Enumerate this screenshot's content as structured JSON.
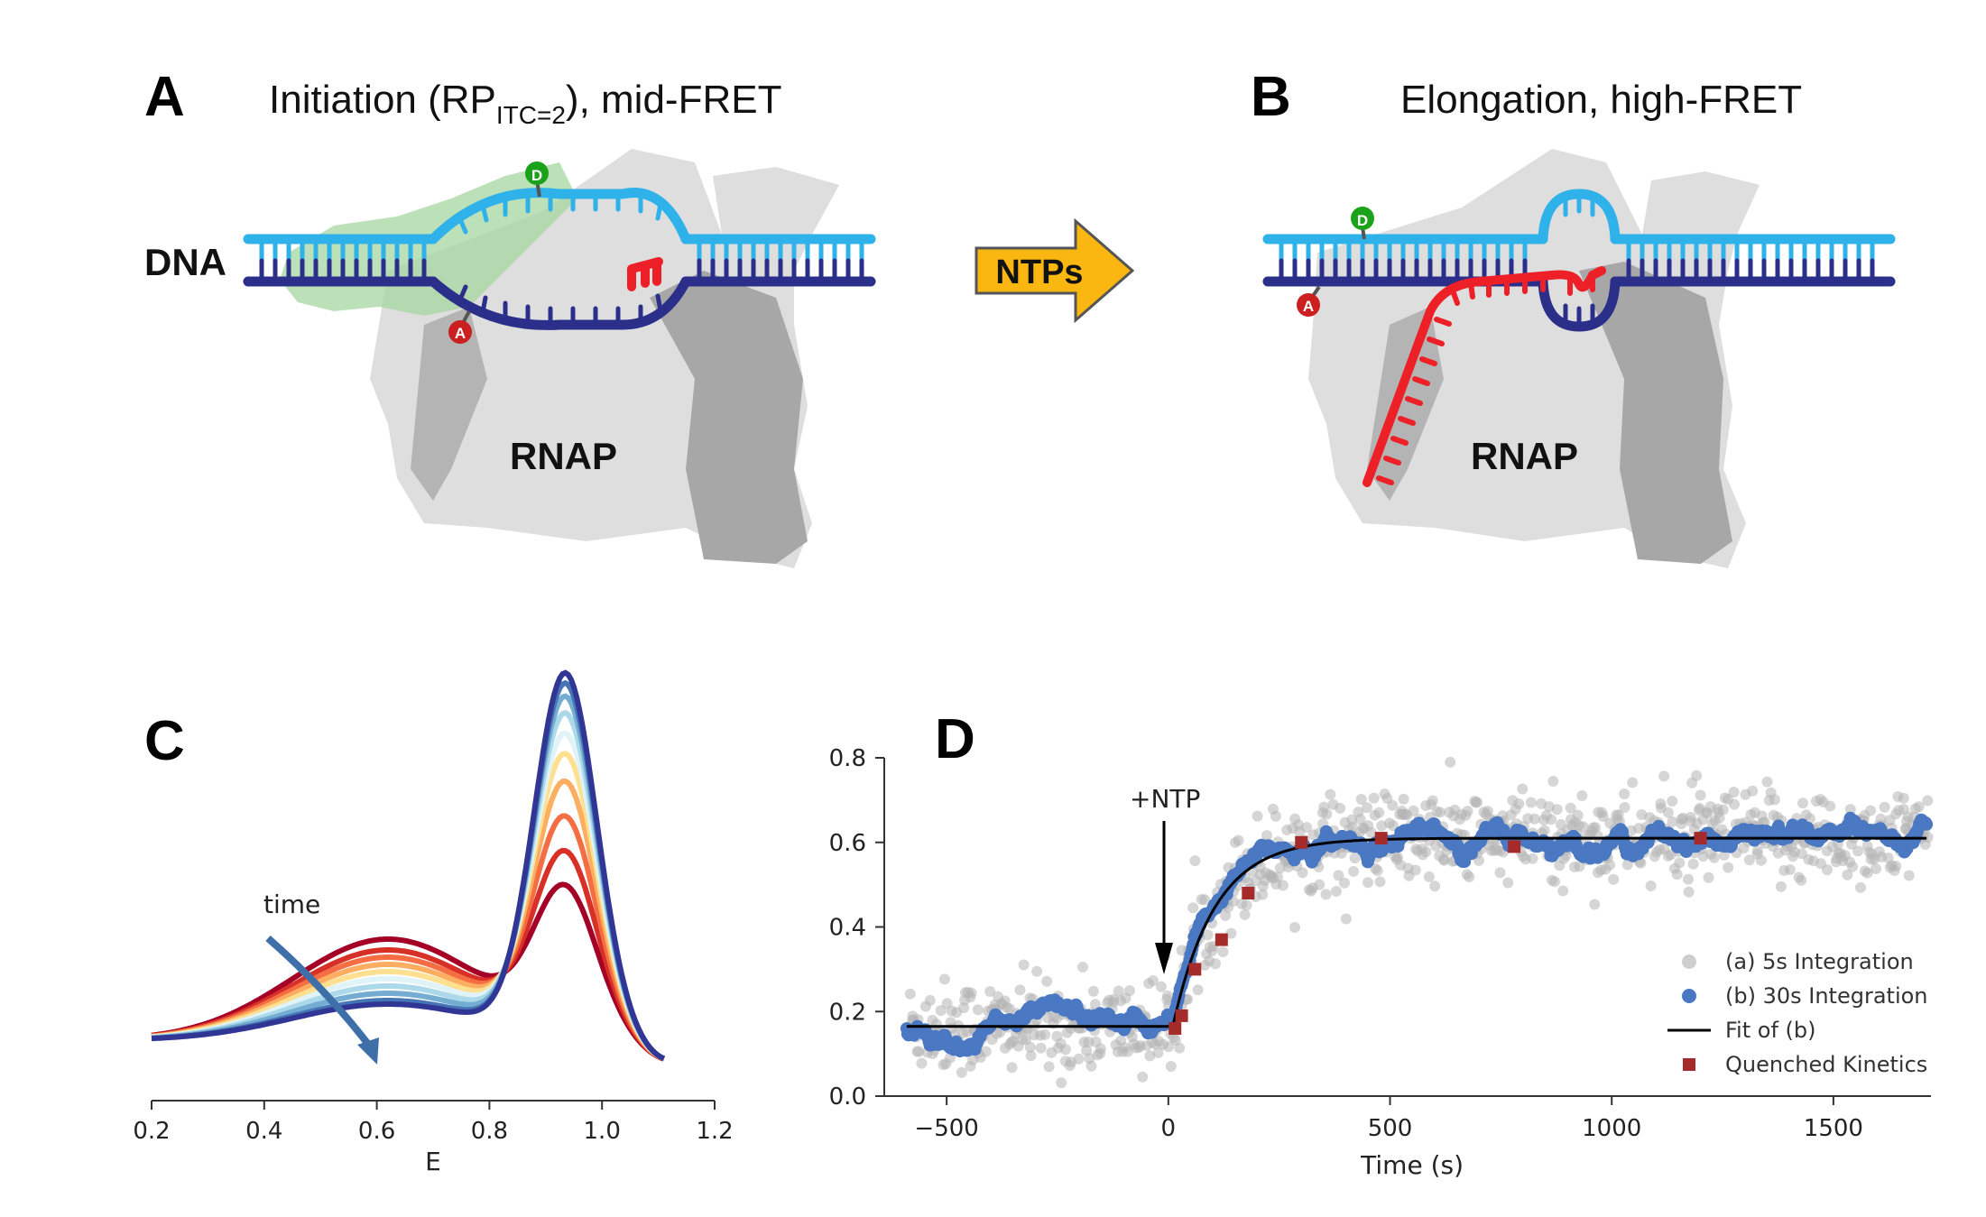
{
  "panels": {
    "A": {
      "letter": "A",
      "title_main": "Initiation (RP",
      "title_sub": "ITC=2",
      "title_tail": "), mid-FRET",
      "dna_label": "DNA",
      "rnap_label": "RNAP",
      "donor_label": "D",
      "acceptor_label": "A"
    },
    "arrow": {
      "label": "NTPs"
    },
    "B": {
      "letter": "B",
      "title": "Elongation, high-FRET",
      "rnap_label": "RNAP",
      "donor_label": "D",
      "acceptor_label": "A"
    },
    "C": {
      "letter": "C",
      "annotation": "time"
    },
    "D": {
      "letter": "D",
      "annotation": "+NTP"
    }
  },
  "colors": {
    "template_strand": "#2b2f8a",
    "nontemplate_strand": "#2fb1ea",
    "rna": "#ee2027",
    "rnap": "#d9d9d9",
    "sigma": "#a6d6a0",
    "donor": "#1aa31a",
    "acceptor": "#cc1f1f",
    "arrow_fill": "#fbb711",
    "series_5s": "#b5b5b5",
    "series_30s": "#4a78c2",
    "fit": "#000000",
    "quenched": "#a52a2a"
  },
  "chart_data": [
    {
      "panel": "C",
      "type": "line",
      "xlabel": "E",
      "ylabel": "",
      "xlim": [
        0.2,
        1.2
      ],
      "xticks": [
        "0.2",
        "0.4",
        "0.6",
        "0.8",
        "1.0",
        "1.2"
      ],
      "x_range_of_curves": [
        0.2,
        1.11
      ],
      "note_color_scale": "red (early) to blue (late) along time",
      "series": [
        {
          "mid_peak": 0.28,
          "high_peak": 0.38,
          "color": "#a50026"
        },
        {
          "mid_peak": 0.25,
          "high_peak": 0.48,
          "color": "#d73027"
        },
        {
          "mid_peak": 0.23,
          "high_peak": 0.58,
          "color": "#f46d43"
        },
        {
          "mid_peak": 0.21,
          "high_peak": 0.68,
          "color": "#fdae61"
        },
        {
          "mid_peak": 0.19,
          "high_peak": 0.76,
          "color": "#fee090"
        },
        {
          "mid_peak": 0.17,
          "high_peak": 0.82,
          "color": "#e0f3f8"
        },
        {
          "mid_peak": 0.15,
          "high_peak": 0.88,
          "color": "#abd9e9"
        },
        {
          "mid_peak": 0.13,
          "high_peak": 0.93,
          "color": "#74add1"
        },
        {
          "mid_peak": 0.11,
          "high_peak": 0.97,
          "color": "#4575b4"
        },
        {
          "mid_peak": 0.1,
          "high_peak": 1.0,
          "color": "#313695"
        }
      ]
    },
    {
      "panel": "D",
      "type": "scatter",
      "xlabel": "Time (s)",
      "ylabel": "",
      "xlim": [
        -600,
        1720
      ],
      "ylim": [
        0.0,
        0.8
      ],
      "xticks": [
        "−500",
        "0",
        "500",
        "1000",
        "1500"
      ],
      "yticks": [
        "0.0",
        "0.2",
        "0.4",
        "0.6",
        "0.8"
      ],
      "legend_position": "lower-right",
      "series": [
        {
          "name": "(a) 5s Integration",
          "kind": "scatter-gray"
        },
        {
          "name": "(b) 30s Integration",
          "kind": "scatter-blue"
        },
        {
          "name": "Fit of (b)",
          "kind": "line",
          "baseline": 0.165,
          "plateau": 0.61,
          "t0": 10,
          "tau": 95
        },
        {
          "name": "Quenched Kinetics",
          "kind": "square",
          "x": [
            15,
            30,
            60,
            120,
            180,
            300,
            480,
            780,
            1200
          ],
          "y": [
            0.16,
            0.19,
            0.3,
            0.37,
            0.48,
            0.6,
            0.61,
            0.59,
            0.61
          ]
        }
      ]
    }
  ]
}
